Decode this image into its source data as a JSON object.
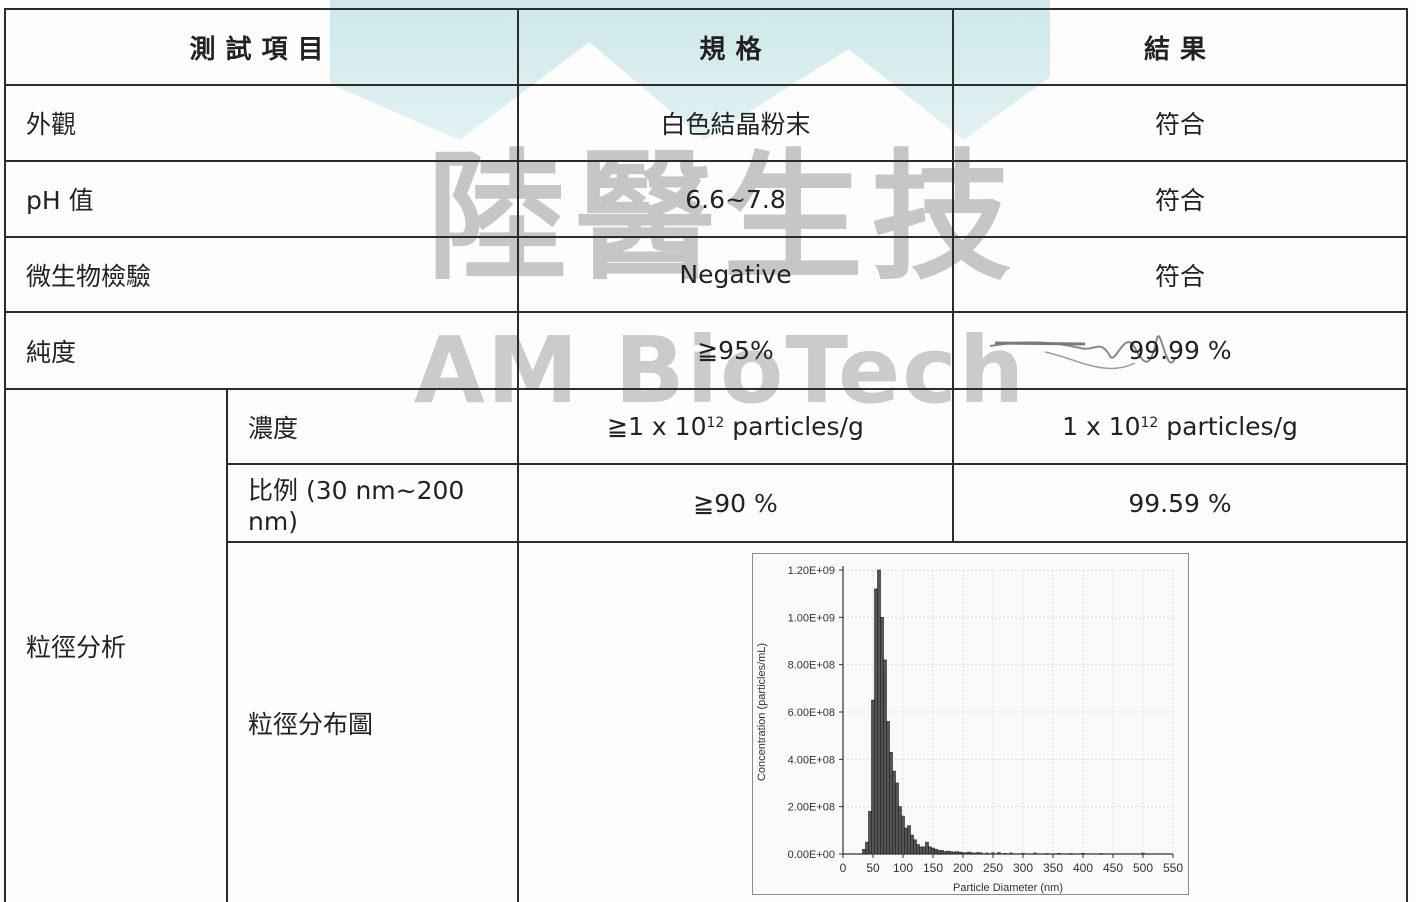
{
  "watermark": {
    "cn_text": "陸醫生技",
    "en_text": "AM BioTech"
  },
  "table": {
    "headers": [
      "測試項目",
      "規格",
      "結果"
    ],
    "rows": {
      "appearance": {
        "item": "外觀",
        "spec": "白色結晶粉末",
        "result": "符合"
      },
      "ph": {
        "item": "pH 值",
        "spec": "6.6~7.8",
        "result": "符合"
      },
      "microbial": {
        "item": "微生物檢驗",
        "spec": "Negative",
        "result": "符合"
      },
      "purity": {
        "item": "純度",
        "spec": "≧95%",
        "result": "99.99 %"
      }
    },
    "particle": {
      "group_label": "粒徑分析",
      "concentration": {
        "label": "濃度",
        "spec_prefix": "≧1 x 10",
        "spec_exp": "12",
        "spec_suffix": " particles/g",
        "result_prefix": "1 x 10",
        "result_exp": "12",
        "result_suffix": " particles/g"
      },
      "ratio": {
        "label": "比例 (30 nm~200 nm)",
        "spec": "≧90 %",
        "result": "99.59 %"
      },
      "distribution": {
        "label": "粒徑分布圖"
      }
    }
  },
  "chart_data": {
    "type": "bar",
    "title": "",
    "xlabel": "Particle Diameter (nm)",
    "ylabel": "Concentration (particles/mL)",
    "xlim": [
      0,
      550
    ],
    "ylim": [
      0,
      1200000000
    ],
    "x_ticks": [
      0,
      50,
      100,
      150,
      200,
      250,
      300,
      350,
      400,
      450,
      500,
      550
    ],
    "x_tick_labels": [
      "0",
      "50",
      "100",
      "150",
      "200",
      "250",
      "300",
      "350",
      "400",
      "450",
      "500",
      "550"
    ],
    "y_ticks": [
      0,
      200000000,
      400000000,
      600000000,
      800000000,
      1000000000,
      1200000000
    ],
    "y_tick_labels": [
      "0.00E+00",
      "2.00E+08",
      "4.00E+08",
      "6.00E+08",
      "8.00E+08",
      "1.00E+09",
      "1.20E+09"
    ],
    "grid": true,
    "bar_width_nm": 5,
    "x": [
      35,
      40,
      45,
      50,
      55,
      60,
      65,
      70,
      75,
      80,
      85,
      90,
      95,
      100,
      105,
      110,
      115,
      120,
      125,
      130,
      135,
      140,
      145,
      150,
      155,
      160,
      165,
      170,
      175,
      180,
      185,
      190,
      195,
      200,
      205,
      210,
      215,
      220,
      225,
      230,
      240,
      250,
      260,
      270,
      280,
      300,
      320,
      340,
      360,
      380,
      400,
      430,
      500
    ],
    "values": [
      20000000,
      50000000,
      180000000,
      650000000,
      1120000000,
      1200000000,
      1000000000,
      820000000,
      560000000,
      430000000,
      350000000,
      300000000,
      200000000,
      160000000,
      110000000,
      120000000,
      80000000,
      60000000,
      40000000,
      30000000,
      30000000,
      50000000,
      30000000,
      25000000,
      20000000,
      15000000,
      15000000,
      10000000,
      12000000,
      10000000,
      8000000,
      10000000,
      8000000,
      6000000,
      5000000,
      8000000,
      5000000,
      4000000,
      6000000,
      5000000,
      4000000,
      5000000,
      6000000,
      3000000,
      4000000,
      3000000,
      4000000,
      2000000,
      3000000,
      2000000,
      3000000,
      2000000,
      4000000
    ]
  }
}
